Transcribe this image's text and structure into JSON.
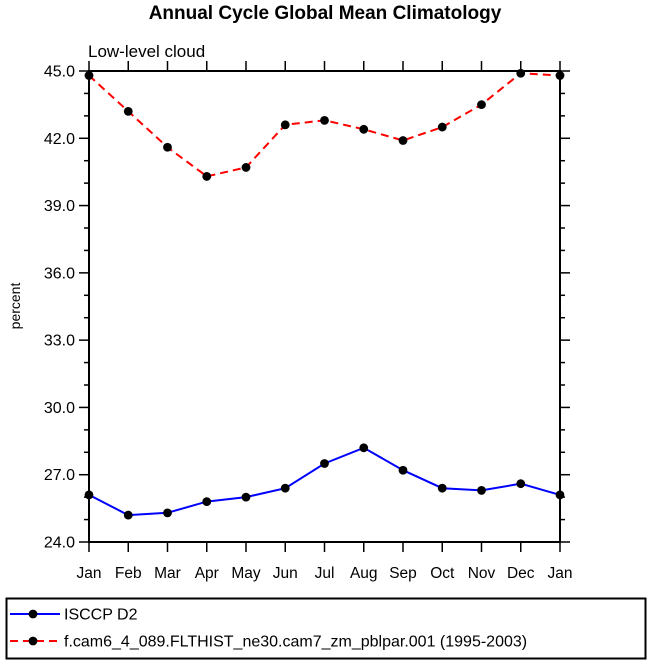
{
  "title": "Annual Cycle Global Mean Climatology",
  "subtitle": "Low-level cloud",
  "axis_color": "#000000",
  "marker_color": "#000000",
  "chart_data": {
    "type": "line",
    "title": "Annual Cycle Global Mean Climatology",
    "subtitle": "Low-level cloud",
    "xlabel": "",
    "ylabel": "percent",
    "x_categories": [
      "Jan",
      "Feb",
      "Mar",
      "Apr",
      "May",
      "Jun",
      "Jul",
      "Aug",
      "Sep",
      "Oct",
      "Nov",
      "Dec",
      "Jan"
    ],
    "ylim": [
      24.0,
      45.0
    ],
    "ytick_major": [
      24,
      27,
      30,
      33,
      36,
      39,
      42,
      45
    ],
    "ytick_labels": [
      "24.0",
      "27.0",
      "30.0",
      "33.0",
      "36.0",
      "39.0",
      "42.0",
      "45.0"
    ],
    "ytick_minor_step": 1.0,
    "grid": false,
    "legend_position": "bottom",
    "series": [
      {
        "name": "ISCCP D2",
        "color": "#0000ff",
        "style": "solid",
        "marker": "filled-circle",
        "marker_color": "#000000",
        "values": [
          26.1,
          25.2,
          25.3,
          25.8,
          26.0,
          26.4,
          27.5,
          28.2,
          27.2,
          26.4,
          26.3,
          26.6,
          26.1
        ]
      },
      {
        "name": "f.cam6_4_089.FLTHIST_ne30.cam7_zm_pblpar.001 (1995-2003)",
        "color": "#ff0000",
        "style": "dashed",
        "marker": "filled-circle",
        "marker_color": "#000000",
        "values": [
          44.8,
          43.2,
          41.6,
          40.3,
          40.7,
          42.6,
          42.8,
          42.4,
          41.9,
          42.5,
          43.5,
          44.9,
          44.8
        ]
      }
    ]
  }
}
